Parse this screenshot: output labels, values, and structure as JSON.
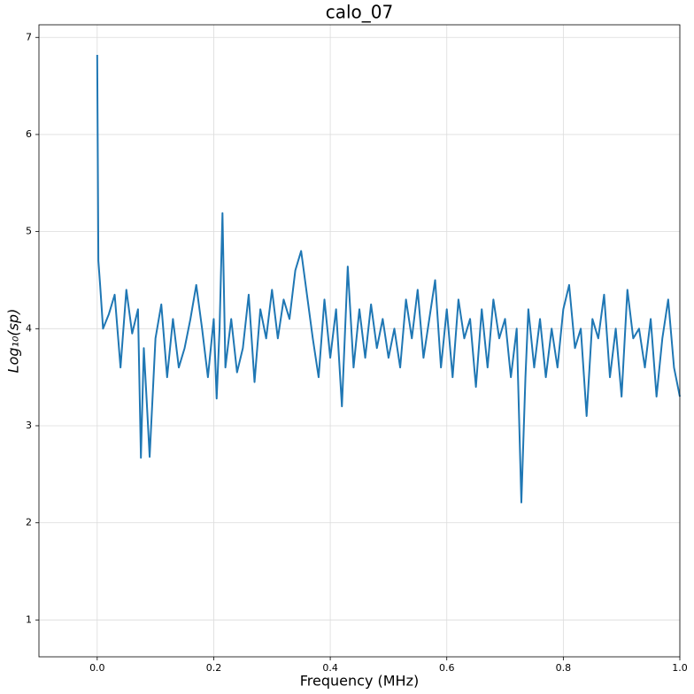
{
  "chart_data": {
    "type": "line",
    "title": "calo_07",
    "xlabel": "Frequency (MHz)",
    "ylabel": "Log₁₀(sp)",
    "x": [
      0,
      0.002,
      0.005,
      0.01,
      0.02,
      0.03,
      0.04,
      0.05,
      0.06,
      0.07,
      0.075,
      0.08,
      0.085,
      0.09,
      0.1,
      0.11,
      0.12,
      0.13,
      0.14,
      0.15,
      0.16,
      0.17,
      0.18,
      0.19,
      0.2,
      0.205,
      0.21,
      0.215,
      0.22,
      0.23,
      0.24,
      0.25,
      0.26,
      0.27,
      0.28,
      0.29,
      0.3,
      0.31,
      0.32,
      0.33,
      0.34,
      0.35,
      0.36,
      0.37,
      0.38,
      0.39,
      0.4,
      0.41,
      0.42,
      0.43,
      0.44,
      0.45,
      0.46,
      0.47,
      0.48,
      0.49,
      0.5,
      0.51,
      0.52,
      0.53,
      0.54,
      0.55,
      0.56,
      0.57,
      0.58,
      0.59,
      0.6,
      0.61,
      0.62,
      0.63,
      0.64,
      0.65,
      0.66,
      0.67,
      0.68,
      0.69,
      0.7,
      0.71,
      0.72,
      0.728,
      0.735,
      0.74,
      0.75,
      0.76,
      0.77,
      0.78,
      0.79,
      0.8,
      0.81,
      0.82,
      0.83,
      0.84,
      0.85,
      0.86,
      0.87,
      0.88,
      0.89,
      0.9,
      0.91,
      0.92,
      0.93,
      0.94,
      0.95,
      0.96,
      0.97,
      0.98,
      0.99,
      1.0
    ],
    "series": [
      {
        "color": "#1f77b4",
        "values": [
          6.82,
          4.7,
          4.45,
          4.0,
          4.15,
          4.35,
          3.6,
          4.4,
          3.95,
          4.2,
          2.67,
          3.8,
          3.25,
          2.68,
          3.9,
          4.25,
          3.5,
          4.1,
          3.6,
          3.8,
          4.1,
          4.45,
          4.0,
          3.5,
          4.1,
          3.28,
          4.0,
          5.19,
          3.6,
          4.1,
          3.55,
          3.8,
          4.35,
          3.45,
          4.2,
          3.9,
          4.4,
          3.9,
          4.3,
          4.1,
          4.6,
          4.8,
          4.35,
          3.9,
          3.5,
          4.3,
          3.7,
          4.2,
          3.2,
          4.64,
          3.6,
          4.2,
          3.7,
          4.25,
          3.8,
          4.1,
          3.7,
          4.0,
          3.6,
          4.3,
          3.9,
          4.4,
          3.7,
          4.1,
          4.5,
          3.6,
          4.2,
          3.5,
          4.3,
          3.9,
          4.1,
          3.4,
          4.2,
          3.6,
          4.3,
          3.9,
          4.1,
          3.5,
          4.0,
          2.21,
          3.5,
          4.2,
          3.6,
          4.1,
          3.5,
          4.0,
          3.6,
          4.2,
          4.45,
          3.8,
          4.0,
          3.1,
          4.1,
          3.9,
          4.35,
          3.5,
          4.0,
          3.3,
          4.4,
          3.9,
          4.0,
          3.6,
          4.1,
          3.3,
          3.9,
          4.3,
          3.6,
          3.3
        ]
      }
    ],
    "xlim": [
      -0.1,
      1.0
    ],
    "ylim": [
      0.62,
      7.13
    ],
    "xticks": [
      {
        "value": 0,
        "label": "0.0"
      },
      0.2,
      0.4,
      0.6,
      0.8,
      {
        "value": 1,
        "label": "1.0"
      }
    ],
    "yticks": [
      1,
      2,
      3,
      4,
      5,
      6,
      7
    ],
    "grid": true
  }
}
